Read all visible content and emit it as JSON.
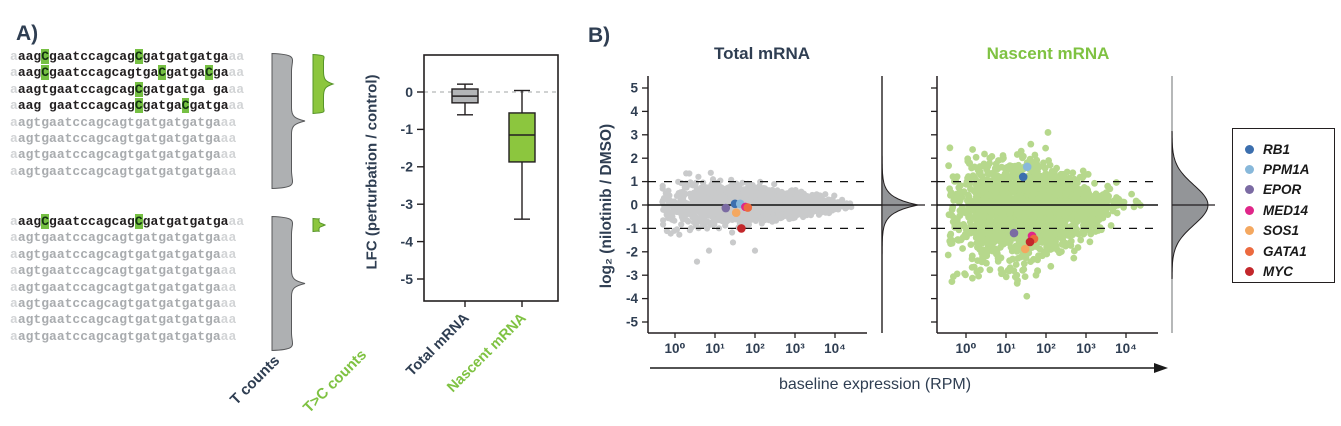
{
  "colors": {
    "text_dark": "#2f3e52",
    "near_black": "#231f20",
    "green": "#8cc63e",
    "green_label": "#7fc242",
    "scatter_green": "#b6d88c",
    "scatter_gray": "#c9cacb",
    "density_fill": "#939598",
    "box_gray": "#b3b5b7",
    "brace_gray": "#aeb0b2",
    "brace_stroke": "#58595b",
    "highlight_green": "#76c043"
  },
  "figure": {
    "panelA": {
      "label": "A)",
      "t_counts_label": "T counts",
      "tc_counts_label": "T>C counts",
      "reads_top": [
        [
          [
            "f",
            "a"
          ],
          [
            "d",
            "aag"
          ],
          [
            "h",
            "C"
          ],
          [
            "d",
            "gaatccagcag"
          ],
          [
            "h",
            "C"
          ],
          [
            "d",
            "gatgatgatga"
          ],
          [
            "f",
            "aa"
          ]
        ],
        [
          [
            "f",
            "a"
          ],
          [
            "d",
            "aag"
          ],
          [
            "h",
            "C"
          ],
          [
            "d",
            "gaatccagcagtga"
          ],
          [
            "h",
            "C"
          ],
          [
            "d",
            "gatga"
          ],
          [
            "h",
            "C"
          ],
          [
            "d",
            "ga"
          ],
          [
            "f",
            "aa"
          ]
        ],
        [
          [
            "f",
            "a"
          ],
          [
            "d",
            "aagtgaatccagcag"
          ],
          [
            "h",
            "C"
          ],
          [
            "d",
            "gatgatga ga"
          ],
          [
            "f",
            "aa"
          ]
        ],
        [
          [
            "f",
            "a"
          ],
          [
            "d",
            "aag gaatccagcag"
          ],
          [
            "h",
            "C"
          ],
          [
            "d",
            "gatga"
          ],
          [
            "h",
            "C"
          ],
          [
            "d",
            "gatga"
          ],
          [
            "f",
            "aa"
          ]
        ],
        [
          [
            "f",
            "a"
          ],
          [
            "g",
            "agtgaatccagcagtgatgatgatga"
          ],
          [
            "f",
            "aa"
          ]
        ],
        [
          [
            "f",
            "a"
          ],
          [
            "g",
            "agtgaatccagcagtgatgatgatga"
          ],
          [
            "f",
            "aa"
          ]
        ],
        [
          [
            "f",
            "a"
          ],
          [
            "g",
            "agtgaatccagcagtgatgatgatga"
          ],
          [
            "f",
            "aa"
          ]
        ],
        [
          [
            "f",
            "a"
          ],
          [
            "g",
            "agtgaatccagcagtgatgatgatga"
          ],
          [
            "f",
            "aa"
          ]
        ]
      ],
      "reads_bottom": [
        [
          [
            "f",
            "a"
          ],
          [
            "d",
            "aag"
          ],
          [
            "h",
            "C"
          ],
          [
            "d",
            "gaatccagcag"
          ],
          [
            "h",
            "C"
          ],
          [
            "d",
            "gatgatgatga"
          ],
          [
            "f",
            "aa"
          ]
        ],
        [
          [
            "f",
            "a"
          ],
          [
            "g",
            "agtgaatccagcagtgatgatgatga"
          ],
          [
            "f",
            "aa"
          ]
        ],
        [
          [
            "f",
            "a"
          ],
          [
            "g",
            "agtgaatccagcagtgatgatgatga"
          ],
          [
            "f",
            "aa"
          ]
        ],
        [
          [
            "f",
            "a"
          ],
          [
            "g",
            "agtgaatccagcagtgatgatgatga"
          ],
          [
            "f",
            "aa"
          ]
        ],
        [
          [
            "f",
            "a"
          ],
          [
            "g",
            "agtgaatccagcagtgatgatgatga"
          ],
          [
            "f",
            "aa"
          ]
        ],
        [
          [
            "f",
            "a"
          ],
          [
            "g",
            "agtgaatccagcagtgatgatgatga"
          ],
          [
            "f",
            "aa"
          ]
        ],
        [
          [
            "f",
            "a"
          ],
          [
            "g",
            "agtgaatccagcagtgatgatgatga"
          ],
          [
            "f",
            "aa"
          ]
        ],
        [
          [
            "f",
            "a"
          ],
          [
            "g",
            "agtgaatccagcagtgatgatgatga"
          ],
          [
            "f",
            "aa"
          ]
        ]
      ]
    },
    "panelB": {
      "label": "B)",
      "y_axis_label": "log₂ (nilotinib / DMSO)",
      "x_axis_label": "baseline expression (RPM)",
      "legend": [
        {
          "gene": "RB1",
          "color": "#3c6fae"
        },
        {
          "gene": "PPM1A",
          "color": "#88b8da"
        },
        {
          "gene": "EPOR",
          "color": "#7b6ba3"
        },
        {
          "gene": "MED14",
          "color": "#e02689"
        },
        {
          "gene": "SOS1",
          "color": "#f4a860"
        },
        {
          "gene": "GATA1",
          "color": "#ec6a3f"
        },
        {
          "gene": "MYC",
          "color": "#c3272b"
        }
      ]
    }
  },
  "chart_data": [
    {
      "type": "boxplot",
      "ylabel": "LFC (perturbation / control)",
      "categories": [
        "Total mRNA",
        "Nascent mRNA"
      ],
      "yticks": [
        0,
        -1,
        -2,
        -3,
        -4,
        -5
      ],
      "ylim": [
        0.9,
        -5.6
      ],
      "reference_line_y": 0,
      "boxes": [
        {
          "name": "Total mRNA",
          "color": "#b3b5b7",
          "whisker_high": 0.21,
          "q3": 0.08,
          "median": -0.11,
          "q1": -0.29,
          "whisker_low": -0.61
        },
        {
          "name": "Nascent mRNA",
          "color": "#8cc63e",
          "whisker_high": 0.04,
          "q3": -0.56,
          "median": -1.15,
          "q1": -1.87,
          "whisker_low": -3.4
        }
      ]
    },
    {
      "type": "scatter",
      "title": "Total mRNA",
      "x_scale": "log10",
      "xlabel": "baseline expression (RPM)",
      "xticks": [
        "10⁰",
        "10¹",
        "10²",
        "10³",
        "10⁴"
      ],
      "yticks": [
        5,
        4,
        3,
        2,
        1,
        0,
        -1,
        -2,
        -3,
        -4,
        -5
      ],
      "ylim": [
        5.5,
        -5.5
      ],
      "xlim_log10": [
        -0.4,
        4.5
      ],
      "dashed_lines_y": [
        1,
        -1
      ],
      "solid_line_y": 0,
      "point_color": "#c9cacb",
      "cloud": {
        "n": 1900,
        "seed": 11,
        "logx_mean": 2.0,
        "logx_sd": 1.0,
        "logx_range": [
          -0.32,
          4.42
        ],
        "y_sd_base": 0.5,
        "y_sd_slope": -0.085,
        "y_sd_min": 0.13,
        "skew_prob": 0,
        "skew_mag": 0,
        "y_clamp": [
          -1.7,
          1.45
        ],
        "r": 3.1
      },
      "outliers": [
        [
          0.28,
          1.35
        ],
        [
          0.95,
          1.1
        ],
        [
          0.85,
          -1.95
        ],
        [
          2.0,
          -1.95
        ],
        [
          0.55,
          -2.42
        ],
        [
          1.45,
          -1.6
        ],
        [
          4.15,
          0.08
        ],
        [
          4.3,
          -0.06
        ]
      ],
      "genes": [
        {
          "gene": "RB1",
          "logx": 1.5,
          "lfc": 0.05
        },
        {
          "gene": "PPM1A",
          "logx": 1.63,
          "lfc": 0.05
        },
        {
          "gene": "EPOR",
          "logx": 1.27,
          "lfc": -0.13
        },
        {
          "gene": "MED14",
          "logx": 1.76,
          "lfc": -0.08
        },
        {
          "gene": "SOS1",
          "logx": 1.53,
          "lfc": -0.33
        },
        {
          "gene": "GATA1",
          "logx": 1.82,
          "lfc": -0.11
        },
        {
          "gene": "MYC",
          "logx": 1.66,
          "lfc": -1.0
        }
      ],
      "marginal_density": {
        "kind": "laplace",
        "scale": 7.5,
        "peak": 36
      }
    },
    {
      "type": "scatter",
      "title": "Nascent mRNA",
      "x_scale": "log10",
      "xlabel": "baseline expression (RPM)",
      "xticks": [
        "10⁰",
        "10¹",
        "10²",
        "10³",
        "10⁴"
      ],
      "yticks": [
        5,
        4,
        3,
        2,
        1,
        0,
        -1,
        -2,
        -3,
        -4,
        -5
      ],
      "ylim": [
        5.5,
        -5.5
      ],
      "xlim_log10": [
        -0.5,
        4.5
      ],
      "dashed_lines_y": [
        1,
        -1
      ],
      "solid_line_y": 0,
      "point_color": "#b6d88c",
      "cloud": {
        "n": 2400,
        "seed": 23,
        "logx_mean": 1.62,
        "logx_sd": 0.82,
        "logx_range": [
          -0.45,
          4.4
        ],
        "y_sd_base": 1.02,
        "y_sd_slope": -0.16,
        "y_sd_min": 0.3,
        "skew_prob": 0.2,
        "skew_mag": 1.5,
        "y_clamp": [
          -3.3,
          2.45
        ],
        "r": 3.4
      },
      "outliers": [
        [
          2.05,
          3.1
        ],
        [
          1.62,
          2.6
        ],
        [
          1.38,
          2.3
        ],
        [
          1.52,
          -3.9
        ],
        [
          1.28,
          -3.35
        ],
        [
          0.92,
          -2.9
        ],
        [
          2.12,
          -2.62
        ],
        [
          1.75,
          -3.0
        ],
        [
          0.15,
          -2.3
        ],
        [
          3.95,
          0.12
        ],
        [
          4.2,
          -0.08
        ],
        [
          4.3,
          0.1
        ]
      ],
      "genes": [
        {
          "gene": "RB1",
          "logx": 1.43,
          "lfc": 1.2
        },
        {
          "gene": "PPM1A",
          "logx": 1.53,
          "lfc": 1.63
        },
        {
          "gene": "EPOR",
          "logx": 1.2,
          "lfc": -1.2
        },
        {
          "gene": "MED14",
          "logx": 1.65,
          "lfc": -1.32
        },
        {
          "gene": "SOS1",
          "logx": 1.48,
          "lfc": -1.88
        },
        {
          "gene": "GATA1",
          "logx": 1.7,
          "lfc": -1.45
        },
        {
          "gene": "MYC",
          "logx": 1.6,
          "lfc": -1.58
        }
      ],
      "marginal_density": {
        "kind": "gauss",
        "scale": 20,
        "peak": 36
      }
    }
  ]
}
